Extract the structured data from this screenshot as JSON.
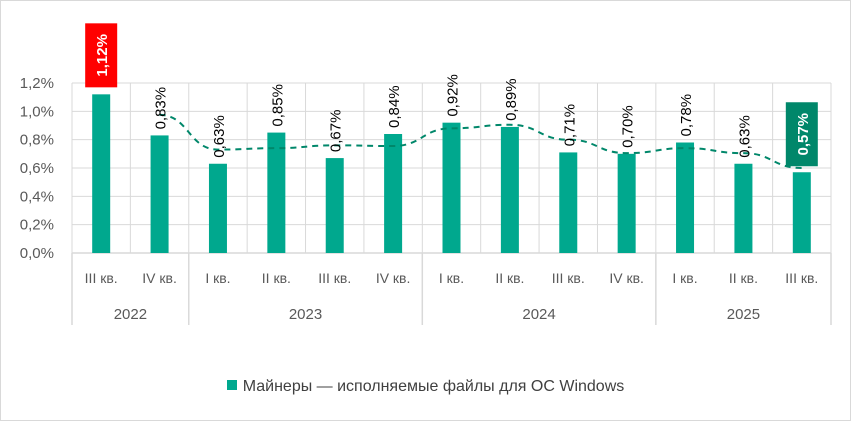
{
  "chart_data": {
    "type": "bar",
    "categories": [
      "III кв.",
      "IV кв.",
      "I кв.",
      "II кв.",
      "III кв.",
      "IV кв.",
      "I кв.",
      "II кв.",
      "III кв.",
      "IV кв.",
      "I кв.",
      "II кв.",
      "III кв."
    ],
    "groups": [
      {
        "label": "2022",
        "count": 2
      },
      {
        "label": "2023",
        "count": 4
      },
      {
        "label": "2024",
        "count": 4
      },
      {
        "label": "2025",
        "count": 3
      }
    ],
    "series": [
      {
        "name": "Майнеры — исполняемые файлы для ОС Windows",
        "values": [
          1.12,
          0.83,
          0.63,
          0.85,
          0.67,
          0.84,
          0.92,
          0.89,
          0.71,
          0.7,
          0.78,
          0.63,
          0.57
        ],
        "labels": [
          "1,12%",
          "0,83%",
          "0,63%",
          "0,85%",
          "0,67%",
          "0,84%",
          "0,92%",
          "0,89%",
          "0,71%",
          "0,70%",
          "0,78%",
          "0,63%",
          "0,57%"
        ]
      }
    ],
    "trendline": {
      "type": "moving-average",
      "period": 2,
      "style": "dashed"
    },
    "yticks": [
      "0,0%",
      "0,2%",
      "0,4%",
      "0,6%",
      "0,8%",
      "1,0%",
      "1,2%"
    ],
    "ylim": [
      0,
      1.2
    ],
    "grid": true,
    "legend_position": "bottom",
    "highlighted": [
      {
        "index": 0,
        "color": "#ff0000"
      },
      {
        "index": 12,
        "color": "#00876a"
      }
    ],
    "colors": {
      "bar": "#00a88e",
      "trend": "#00876a",
      "grid": "#d9d9d9"
    }
  }
}
